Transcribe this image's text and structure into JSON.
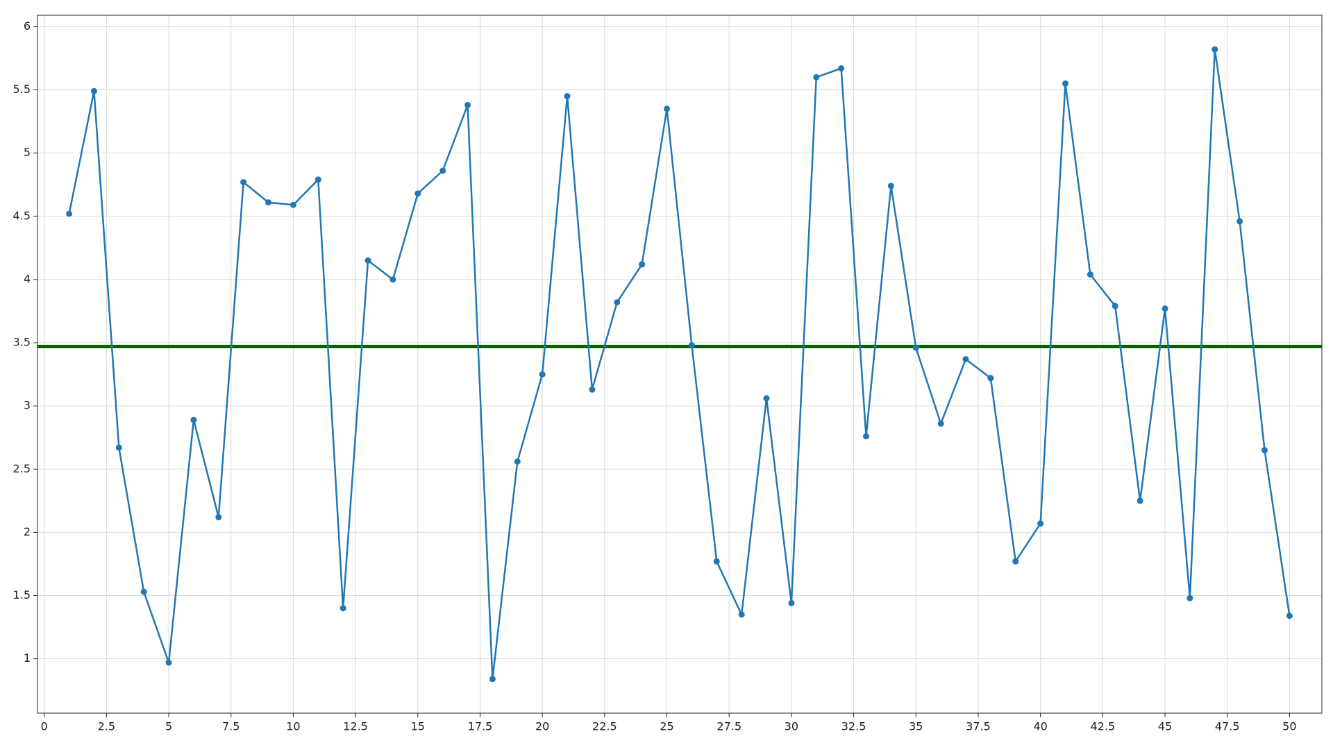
{
  "chart_data": {
    "type": "line",
    "x": [
      1,
      2,
      3,
      4,
      5,
      6,
      7,
      8,
      9,
      10,
      11,
      12,
      13,
      14,
      15,
      16,
      17,
      18,
      19,
      20,
      21,
      22,
      23,
      24,
      25,
      26,
      27,
      28,
      29,
      30,
      31,
      32,
      33,
      34,
      35,
      36,
      37,
      38,
      39,
      40,
      41,
      42,
      43,
      44,
      45,
      46,
      47,
      48,
      49,
      50
    ],
    "series": [
      {
        "color": "#1f77b4",
        "values": [
          4.52,
          5.49,
          2.67,
          1.53,
          0.97,
          2.89,
          2.12,
          4.77,
          4.61,
          4.59,
          4.79,
          1.4,
          4.15,
          4.0,
          4.68,
          4.86,
          5.38,
          0.84,
          2.56,
          3.25,
          5.45,
          3.13,
          3.82,
          4.12,
          5.35,
          3.48,
          1.77,
          1.35,
          3.06,
          1.44,
          5.6,
          5.67,
          2.76,
          4.74,
          3.46,
          2.86,
          3.37,
          3.22,
          1.77,
          2.07,
          5.55,
          4.04,
          3.79,
          2.25,
          3.77,
          1.48,
          5.82,
          4.46,
          2.65,
          1.34
        ]
      }
    ],
    "hline": {
      "value": 3.47,
      "color": "#006400"
    },
    "xlim": [
      -0.27,
      51.3
    ],
    "ylim": [
      0.57,
      6.09
    ],
    "xticks": [
      0,
      2.5,
      5,
      7.5,
      10,
      12.5,
      15,
      17.5,
      20,
      22.5,
      25,
      27.5,
      30,
      32.5,
      35,
      37.5,
      40,
      42.5,
      45,
      47.5,
      50
    ],
    "yticks": [
      1,
      1.5,
      2,
      2.5,
      3,
      3.5,
      4,
      4.5,
      5,
      5.5,
      6
    ],
    "grid": true
  }
}
